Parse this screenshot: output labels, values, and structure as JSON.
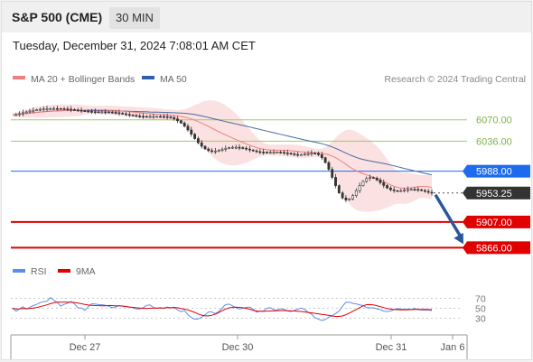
{
  "header": {
    "symbol": "S&P 500 (CME)",
    "timeframe": "30 MIN",
    "datetime": "Tuesday, December 31, 2024 7:08:01 AM CET"
  },
  "legend": {
    "items": [
      {
        "label": "MA 20 + Bollinger Bands",
        "color": "#f08080"
      },
      {
        "label": "MA 50",
        "color": "#2e5fa8"
      }
    ],
    "credit": "Research © 2024 Trading Central"
  },
  "colors": {
    "up": "#ffffff",
    "down": "#333333",
    "band": "#fbdede",
    "ma20": "#f08080",
    "ma50": "#4a6aa0",
    "resistance": "#9ccc65",
    "pivot": "#1e6bf0",
    "support": "#e00000",
    "current": "#333333",
    "rsi": "#5b8def",
    "rsi_ma": "#e00000",
    "arrow": "#2b579a"
  },
  "chart_data": [
    {
      "type": "candlestick",
      "x_labels": [
        "Dec 27",
        "Dec 30",
        "Dec 31",
        "Jan 6"
      ],
      "ylim": [
        5855,
        6120
      ],
      "price_levels": [
        {
          "label": "6070.00",
          "value": 6070,
          "kind": "resistance"
        },
        {
          "label": "6036.00",
          "value": 6036,
          "kind": "resistance"
        },
        {
          "label": "5988.00",
          "value": 5988,
          "kind": "pivot"
        },
        {
          "label": "5953.25",
          "value": 5953.25,
          "kind": "current"
        },
        {
          "label": "5907.00",
          "value": 5907,
          "kind": "support"
        },
        {
          "label": "5866.00",
          "value": 5866,
          "kind": "support"
        }
      ],
      "forecast_target": 5866,
      "close": [
        6078.0,
        6078.3,
        6079.8,
        6081.3,
        6082.7,
        6084.0,
        6085.1,
        6086.0,
        6086.7,
        6087.3,
        6087.6,
        6087.8,
        6088.0,
        6087.9,
        6087.7,
        6087.4,
        6086.9,
        6086.3,
        6085.7,
        6085.1,
        6084.4,
        6083.9,
        6083.4,
        6083.0,
        6082.7,
        6082.6,
        6082.6,
        6082.5,
        6082.3,
        6081.9,
        6081.3,
        6080.6,
        6079.6,
        6078.6,
        6077.7,
        6076.9,
        6076.2,
        6075.6,
        6075.4,
        6075.3,
        6075.3,
        6075.4,
        6075.4,
        6075.3,
        6075.1,
        6074.5,
        6073.4,
        6071.5,
        6068.6,
        6064.8,
        6059.8,
        6053.8,
        6047.0,
        6040.0,
        6033.4,
        6027.8,
        6023.5,
        6020.8,
        6019.7,
        6020.0,
        6021.2,
        6022.8,
        6024.4,
        6025.6,
        6026.2,
        6026.2,
        6025.6,
        6024.6,
        6023.3,
        6021.8,
        6020.4,
        6019.2,
        6018.5,
        6018.2,
        6018.1,
        6018.2,
        6018.3,
        6018.3,
        6018.0,
        6017.3,
        6016.5,
        6015.6,
        6014.8,
        6014.4,
        6014.6,
        6015.3,
        6016.1,
        6016.8,
        6016.5,
        6014.4,
        6009.6,
        6001.7,
        5991.0,
        5978.2,
        5965.0,
        5953.4,
        5945.4,
        5942.0,
        5943.6,
        5949.1,
        5957.0,
        5965.0,
        5971.8,
        5976.3,
        5978.0,
        5977.0,
        5974.0,
        5969.7,
        5965.2,
        5961.2,
        5958.4,
        5956.9,
        5956.6,
        5957.1,
        5957.9,
        5958.7,
        5959.1,
        5959.0,
        5958.4,
        5957.2,
        5955.8,
        5954.4,
        5953.3
      ]
    },
    {
      "type": "line",
      "name": "RSI",
      "series_labels": [
        "RSI",
        "9MA"
      ],
      "y_ticks": [
        70,
        50,
        30
      ],
      "ylim": [
        0,
        100
      ],
      "rsi": [
        50.0,
        44.0,
        48.8,
        53.0,
        48.1,
        52.1,
        55.5,
        57.9,
        61.5,
        63.2,
        64.1,
        71.7,
        66.0,
        61.9,
        54.3,
        58.0,
        60.1,
        63.9,
        59.0,
        50.7,
        50.7,
        45.8,
        53.2,
        59.1,
        58.6,
        57.4,
        57.2,
        55.9,
        54.2,
        51.2,
        52.7,
        55.5,
        54.0,
        53.3,
        52.5,
        51.0,
        48.6,
        48.5,
        51.2,
        55.7,
        56.8,
        51.6,
        49.9,
        51.5,
        49.5,
        52.6,
        50.7,
        52.5,
        46.6,
        43.1,
        45.9,
        37.1,
        31.4,
        28.0,
        28.5,
        31.9,
        37.0,
        42.5,
        42.6,
        39.2,
        43.4,
        50.9,
        57.5,
        58.3,
        54.9,
        51.1,
        48.4,
        50.1,
        51.8,
        52.2,
        48.4,
        42.2,
        44.3,
        44.6,
        50.0,
        51.2,
        46.9,
        46.7,
        48.9,
        48.0,
        44.6,
        43.5,
        45.8,
        48.2,
        50.4,
        47.9,
        42.0,
        38.1,
        31.2,
        28.0,
        25.2,
        27.4,
        31.8,
        35.5,
        39.5,
        44.4,
        54.2,
        62.0,
        62.3,
        60.0,
        59.0,
        57.0,
        55.4,
        51.7,
        50.8,
        51.0,
        48.9,
        47.2,
        44.3,
        43.4,
        44.6,
        47.3,
        49.2,
        48.5,
        47.8,
        48.6,
        47.9,
        49.4,
        47.4,
        46.6,
        46.2,
        46.6,
        45.3
      ],
      "rsi_ma": [
        50.0,
        48.8,
        48.9,
        49.4,
        49.2,
        49.6,
        50.3,
        51.6,
        53.3,
        55.1,
        56.9,
        59.2,
        61.1,
        62.4,
        62.5,
        62.6,
        62.4,
        62.3,
        61.7,
        60.4,
        59.2,
        57.7,
        56.5,
        55.9,
        55.4,
        55.2,
        54.9,
        55.0,
        55.7,
        55.5,
        55.1,
        55.0,
        54.5,
        53.6,
        52.5,
        51.9,
        51.0,
        50.4,
        50.0,
        49.7,
        50.2,
        50.2,
        50.3,
        50.5,
        50.8,
        51.3,
        51.1,
        51.5,
        51.1,
        49.3,
        48.4,
        46.8,
        44.4,
        41.6,
        38.6,
        36.1,
        34.7,
        34.8,
        36.0,
        38.3,
        41.5,
        45.2,
        48.5,
        50.7,
        52.0,
        52.2,
        51.9,
        51.0,
        49.9,
        48.1,
        45.9,
        44.5,
        43.8,
        43.9,
        44.3,
        44.6,
        44.8,
        45.1,
        45.3,
        45.3,
        45.1,
        44.8,
        44.5,
        44.1,
        43.4,
        42.7,
        41.7,
        40.7,
        39.8,
        38.9,
        37.7,
        36.7,
        35.6,
        34.3,
        33.7,
        33.6,
        34.6,
        37.0,
        40.4,
        44.0,
        47.5,
        51.2,
        54.9,
        57.2,
        57.4,
        56.7,
        55.3,
        53.3,
        51.4,
        49.5,
        48.3,
        47.5,
        47.2,
        46.9,
        46.9,
        47.0,
        47.2,
        47.8,
        48.0,
        47.7,
        47.6,
        47.4,
        47.2
      ]
    }
  ]
}
